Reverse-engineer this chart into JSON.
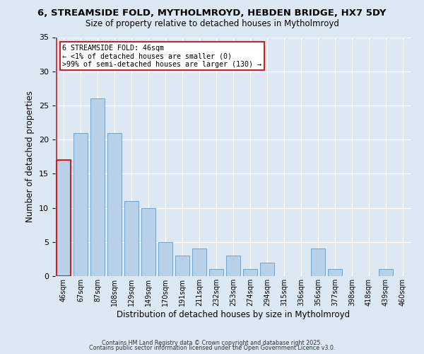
{
  "title1": "6, STREAMSIDE FOLD, MYTHOLMROYD, HEBDEN BRIDGE, HX7 5DY",
  "title2": "Size of property relative to detached houses in Mytholmroyd",
  "xlabel": "Distribution of detached houses by size in Mytholmroyd",
  "ylabel": "Number of detached properties",
  "bar_labels": [
    "46sqm",
    "67sqm",
    "87sqm",
    "108sqm",
    "129sqm",
    "149sqm",
    "170sqm",
    "191sqm",
    "211sqm",
    "232sqm",
    "253sqm",
    "274sqm",
    "294sqm",
    "315sqm",
    "336sqm",
    "356sqm",
    "377sqm",
    "398sqm",
    "418sqm",
    "439sqm",
    "460sqm"
  ],
  "bar_values": [
    17,
    21,
    26,
    21,
    11,
    10,
    5,
    3,
    4,
    1,
    3,
    1,
    2,
    0,
    0,
    4,
    1,
    0,
    0,
    1,
    0
  ],
  "bar_color": "#b8d0e8",
  "bar_edge_color": "#6699bb",
  "highlight_bar_index": 0,
  "highlight_color": "#cc2222",
  "annotation_title": "6 STREAMSIDE FOLD: 46sqm",
  "annotation_line1": "← <1% of detached houses are smaller (0)",
  "annotation_line2": ">99% of semi-detached houses are larger (130) →",
  "annotation_box_color": "#ffffff",
  "annotation_box_edge": "#cc2222",
  "ylim": [
    0,
    35
  ],
  "yticks": [
    0,
    5,
    10,
    15,
    20,
    25,
    30,
    35
  ],
  "footer1": "Contains HM Land Registry data © Crown copyright and database right 2025.",
  "footer2": "Contains public sector information licensed under the Open Government Licence v3.0.",
  "background_color": "#dde8f5",
  "plot_background": "#dde8f5"
}
